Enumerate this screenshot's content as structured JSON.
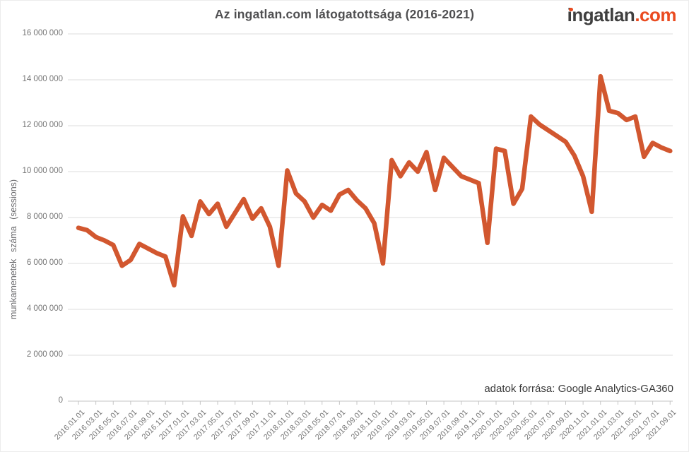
{
  "title": "Az ingatlan.com látogatottsága (2016-2021)",
  "logo": {
    "name": "ingatlan",
    "tld": ".com"
  },
  "source_note": "adatok forrása: Google Analytics-GA360",
  "chart_data": {
    "type": "line",
    "title": "Az ingatlan.com látogatottsága (2016-2021)",
    "xlabel": "",
    "ylabel": "munkamenetek száma (sessions)",
    "legend": [],
    "grid": true,
    "ylim": [
      0,
      16000000
    ],
    "ytick_interval": 2000000,
    "ytick_labels": [
      "0",
      "2 000 000",
      "4 000 000",
      "6 000 000",
      "8 000 000",
      "10 000 000",
      "12 000 000",
      "14 000 000",
      "16 000 000"
    ],
    "xtick_every": 2,
    "line_color": "#d2572f",
    "months": [
      "2016.01.01",
      "2016.02.01",
      "2016.03.01",
      "2016.04.01",
      "2016.05.01",
      "2016.06.01",
      "2016.07.01",
      "2016.08.01",
      "2016.09.01",
      "2016.10.01",
      "2016.11.01",
      "2016.12.01",
      "2017.01.01",
      "2017.02.01",
      "2017.03.01",
      "2017.04.01",
      "2017.05.01",
      "2017.06.01",
      "2017.07.01",
      "2017.08.01",
      "2017.09.01",
      "2017.10.01",
      "2017.11.01",
      "2017.12.01",
      "2018.01.01",
      "2018.02.01",
      "2018.03.01",
      "2018.04.01",
      "2018.05.01",
      "2018.06.01",
      "2018.07.01",
      "2018.08.01",
      "2018.09.01",
      "2018.10.01",
      "2018.11.01",
      "2018.12.01",
      "2019.01.01",
      "2019.02.01",
      "2019.03.01",
      "2019.04.01",
      "2019.05.01",
      "2019.06.01",
      "2019.07.01",
      "2019.08.01",
      "2019.09.01",
      "2019.10.01",
      "2019.11.01",
      "2019.12.01",
      "2020.01.01",
      "2020.02.01",
      "2020.03.01",
      "2020.04.01",
      "2020.05.01",
      "2020.06.01",
      "2020.07.01",
      "2020.08.01",
      "2020.09.01",
      "2020.10.01",
      "2020.11.01",
      "2020.12.01",
      "2021.01.01",
      "2021.02.01",
      "2021.03.01",
      "2021.04.01",
      "2021.05.01",
      "2021.06.01",
      "2021.07.01",
      "2021.08.01",
      "2021.09.01"
    ],
    "values": [
      7550000,
      7450000,
      7150000,
      7000000,
      6800000,
      5900000,
      6150000,
      6850000,
      6650000,
      6450000,
      6300000,
      5050000,
      8050000,
      7200000,
      8700000,
      8150000,
      8600000,
      7600000,
      8200000,
      8800000,
      7950000,
      8400000,
      7600000,
      5900000,
      10050000,
      9050000,
      8700000,
      8000000,
      8550000,
      8300000,
      9000000,
      9200000,
      8750000,
      8400000,
      7750000,
      6000000,
      10500000,
      9800000,
      10400000,
      10000000,
      10850000,
      9200000,
      10600000,
      10200000,
      9800000,
      9650000,
      9500000,
      6900000,
      11000000,
      10900000,
      8600000,
      9250000,
      12400000,
      12050000,
      11800000,
      11550000,
      11300000,
      10700000,
      9800000,
      8250000,
      14150000,
      12650000,
      12550000,
      12250000,
      12400000,
      10650000,
      11250000,
      11050000,
      10900000
    ]
  }
}
